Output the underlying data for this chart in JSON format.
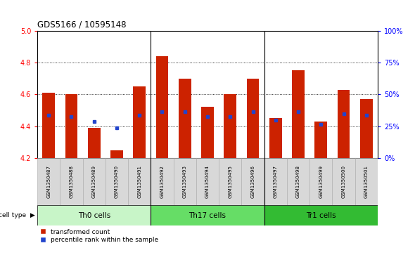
{
  "title": "GDS5166 / 10595148",
  "samples": [
    "GSM1350487",
    "GSM1350488",
    "GSM1350489",
    "GSM1350490",
    "GSM1350491",
    "GSM1350492",
    "GSM1350493",
    "GSM1350494",
    "GSM1350495",
    "GSM1350496",
    "GSM1350497",
    "GSM1350498",
    "GSM1350499",
    "GSM1350500",
    "GSM1350501"
  ],
  "transformed_count": [
    4.61,
    4.6,
    4.39,
    4.25,
    4.65,
    4.84,
    4.7,
    4.52,
    4.6,
    4.7,
    4.45,
    4.75,
    4.43,
    4.63,
    4.57
  ],
  "percentile_values": [
    4.47,
    4.46,
    4.43,
    4.39,
    4.47,
    4.49,
    4.49,
    4.46,
    4.46,
    4.49,
    4.44,
    4.49,
    4.41,
    4.48,
    4.47
  ],
  "cell_groups": [
    {
      "label": "Th0 cells",
      "start": 0,
      "end": 4,
      "color": "#c8f5c8"
    },
    {
      "label": "Th17 cells",
      "start": 5,
      "end": 9,
      "color": "#66dd66"
    },
    {
      "label": "Tr1 cells",
      "start": 10,
      "end": 14,
      "color": "#33bb33"
    }
  ],
  "ylim": [
    4.2,
    5.0
  ],
  "yticks_left": [
    4.2,
    4.4,
    4.6,
    4.8,
    5.0
  ],
  "yticks_right": [
    0,
    25,
    50,
    75,
    100
  ],
  "grid_lines": [
    4.4,
    4.6,
    4.8
  ],
  "bar_color": "#cc2200",
  "dot_color": "#2244cc",
  "background_color": "#ffffff",
  "bar_bottom": 4.2,
  "bar_width": 0.55,
  "label_box_color": "#d8d8d8",
  "label_box_edge": "#aaaaaa",
  "group_sep_color": "#000000",
  "vline_color": "#888888"
}
